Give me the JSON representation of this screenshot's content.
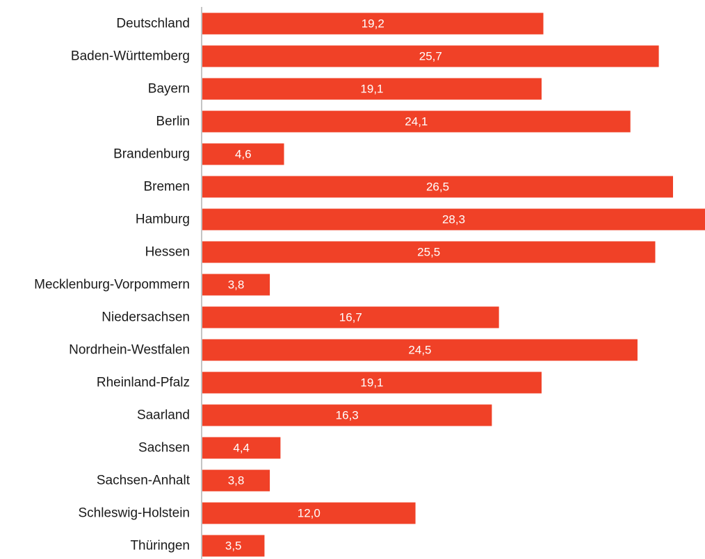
{
  "chart_data": {
    "type": "bar",
    "orientation": "horizontal",
    "categories": [
      "Deutschland",
      "Baden-Württemberg",
      "Bayern",
      "Berlin",
      "Brandenburg",
      "Bremen",
      "Hamburg",
      "Hessen",
      "Mecklenburg-Vorpommern",
      "Niedersachsen",
      "Nordrhein-Westfalen",
      "Rheinland-Pfalz",
      "Saarland",
      "Sachsen",
      "Sachsen-Anhalt",
      "Schleswig-Holstein",
      "Thüringen"
    ],
    "values": [
      19.2,
      25.7,
      19.1,
      24.1,
      4.6,
      26.5,
      28.3,
      25.5,
      3.8,
      16.7,
      24.5,
      19.1,
      16.3,
      4.4,
      3.8,
      12.0,
      3.5
    ],
    "value_labels": [
      "19,2",
      "25,7",
      "19,1",
      "24,1",
      "4,6",
      "26,5",
      "28,3",
      "25,5",
      "3,8",
      "16,7",
      "24,5",
      "19,1",
      "16,3",
      "4,4",
      "3,8",
      "12,0",
      "3,5"
    ],
    "bar_color": "#f04127",
    "axis_color": "#b0b0b0",
    "xlim": [
      0,
      28.3
    ],
    "grid": false,
    "legend": "none"
  }
}
